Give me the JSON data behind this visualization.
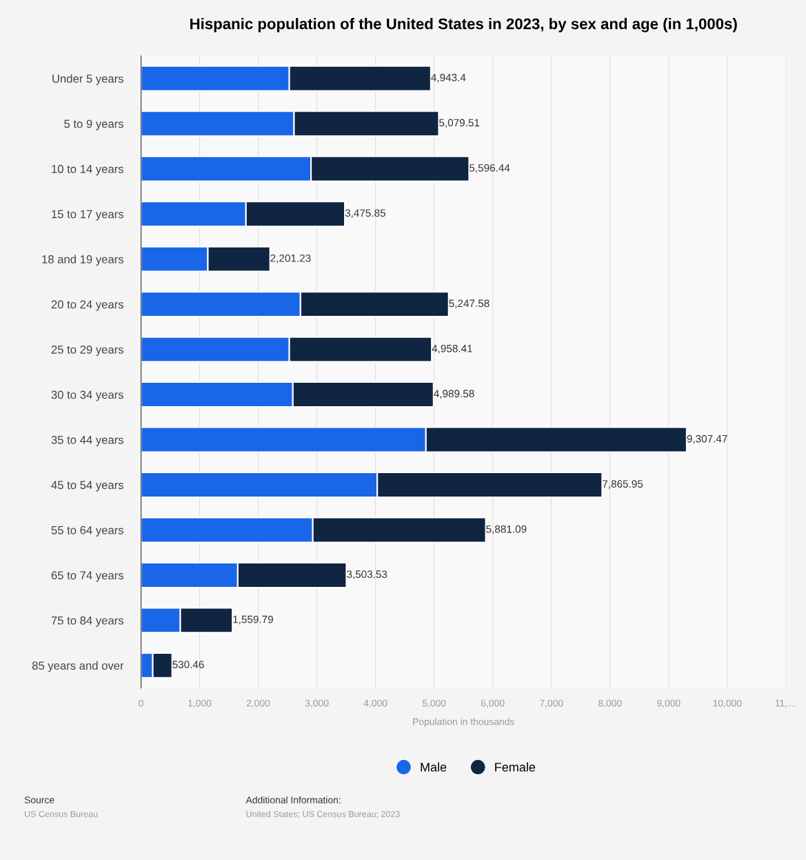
{
  "chart_data": {
    "type": "bar",
    "orientation": "horizontal",
    "stacked": true,
    "title": "Hispanic population of the United States in 2023, by sex and age (in 1,000s)",
    "xlabel": "Population in thousands",
    "categories": [
      "Under 5 years",
      "5 to 9 years",
      "10 to 14 years",
      "15 to 17 years",
      "18 and 19 years",
      "20 to 24 years",
      "25 to 29 years",
      "30 to 34 years",
      "35 to 44 years",
      "45 to 54 years",
      "55 to 64 years",
      "65 to 74 years",
      "75 to 84 years",
      "85 years and over"
    ],
    "series": [
      {
        "name": "Male",
        "color": "#1a66e8",
        "values": [
          2530,
          2610,
          2900,
          1790,
          1140,
          2720,
          2530,
          2590,
          4860,
          4030,
          2930,
          1650,
          670,
          200
        ]
      },
      {
        "name": "Female",
        "color": "#0f2541",
        "values": [
          2413.4,
          2469.51,
          2696.44,
          1685.85,
          1061.23,
          2527.58,
          2428.41,
          2399.58,
          4447.47,
          3835.95,
          2951.09,
          1853.53,
          889.79,
          330.46
        ]
      }
    ],
    "totals": [
      "4,943.4",
      "5,079.51",
      "5,596.44",
      "3,475.85",
      "2,201.23",
      "5,247.58",
      "4,958.41",
      "4,989.58",
      "9,307.47",
      "7,865.95",
      "5,881.09",
      "3,503.53",
      "1,559.79",
      "530.46"
    ],
    "xlim": [
      0,
      11000
    ],
    "xticks": [
      0,
      {
        "value": 1000,
        "label": "1,000"
      },
      {
        "value": 2000,
        "label": "2,000"
      },
      {
        "value": 3000,
        "label": "3,000"
      },
      {
        "value": 4000,
        "label": "4,000"
      },
      {
        "value": 5000,
        "label": "5,000"
      },
      {
        "value": 6000,
        "label": "6,000"
      },
      {
        "value": 7000,
        "label": "7,000"
      },
      {
        "value": 8000,
        "label": "8,000"
      },
      {
        "value": 9000,
        "label": "9,000"
      },
      {
        "value": 10000,
        "label": "10,000"
      },
      {
        "value": 11000,
        "label": "11,…"
      }
    ],
    "grid": "x",
    "legend": "bottom",
    "annotations": [
      "Source",
      "US Census Bureau",
      "Additional Information:",
      "United States; US Census Bureau; 2023"
    ]
  }
}
